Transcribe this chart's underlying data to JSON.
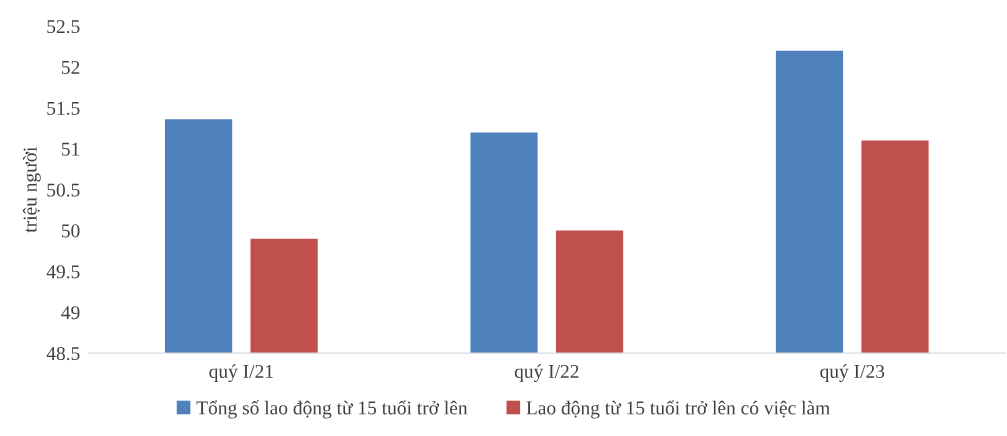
{
  "chart_data": {
    "type": "bar",
    "ylabel": "triệu người",
    "categories": [
      "quý I/21",
      "quý I/22",
      "quý I/23"
    ],
    "series": [
      {
        "name": "Tổng số lao động từ 15 tuổi trở lên",
        "color": "#4f81bd",
        "values": [
          51.36,
          51.2,
          52.2
        ]
      },
      {
        "name": "Lao động từ 15 tuổi trở lên có việc làm",
        "color": "#c0504d",
        "values": [
          49.9,
          50.0,
          51.1
        ]
      }
    ],
    "ylim": [
      48.5,
      52.5
    ],
    "yticks": [
      48.5,
      49,
      49.5,
      50,
      50.5,
      51,
      51.5,
      52,
      52.5
    ],
    "grid": false,
    "legend": "bottom"
  }
}
